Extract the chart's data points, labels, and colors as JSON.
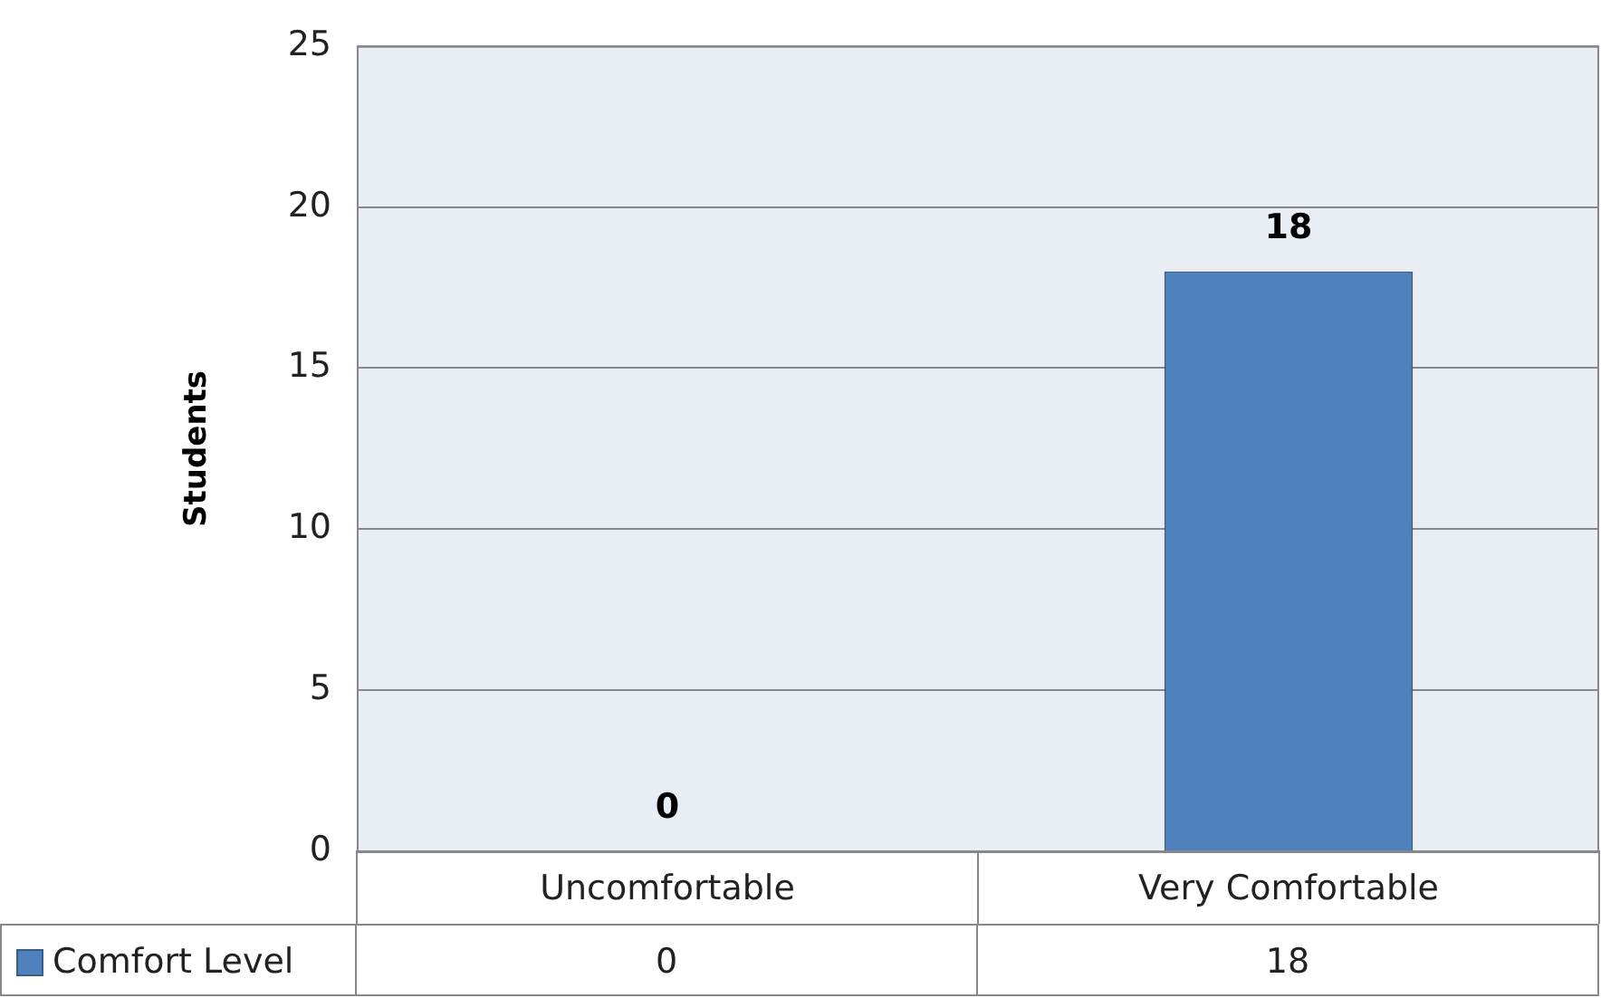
{
  "chart_data": {
    "type": "bar",
    "ylabel": "Students",
    "categories": [
      "Uncomfortable",
      "Very Comfortable"
    ],
    "series": [
      {
        "name": "Comfort Level",
        "color": "#4f81bd",
        "values": [
          0,
          18
        ],
        "value_labels": [
          "0",
          "18"
        ]
      }
    ],
    "ylim": [
      0,
      25
    ],
    "yticks": [
      0,
      5,
      10,
      15,
      20,
      25
    ],
    "grid": "y",
    "legend": "bottom",
    "annotations": [
      "0",
      "18"
    ]
  }
}
